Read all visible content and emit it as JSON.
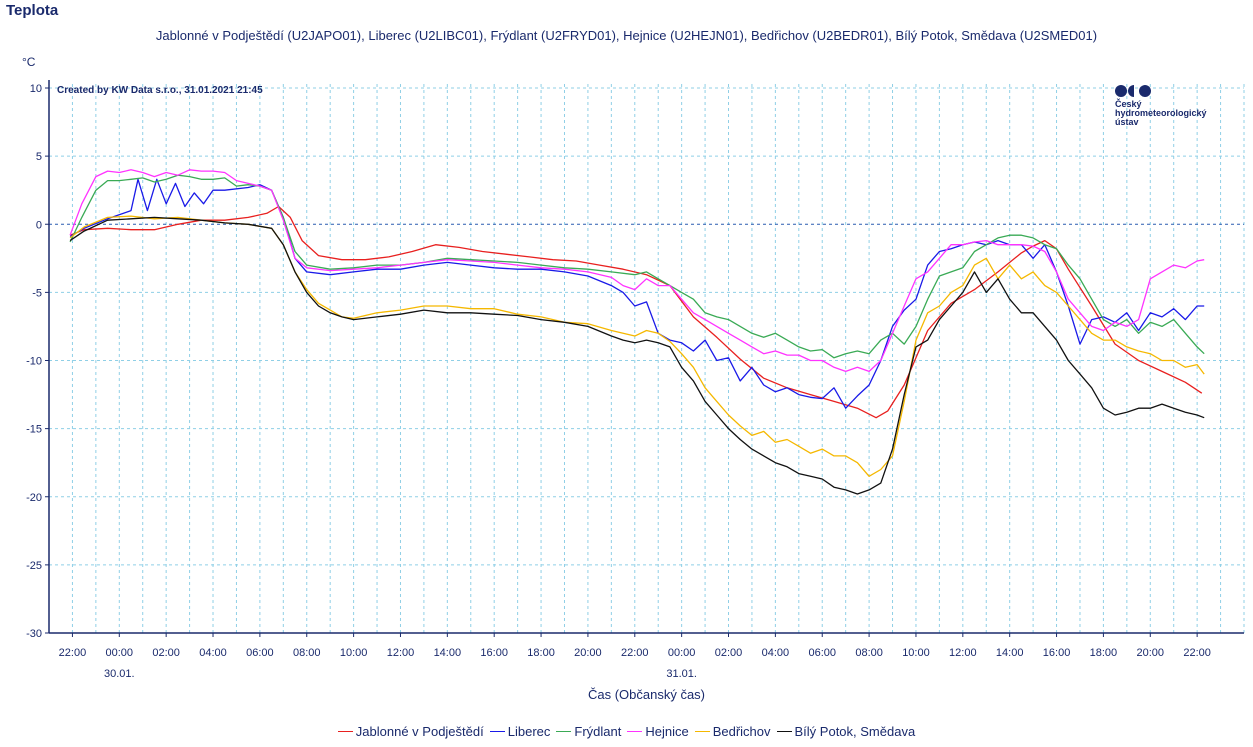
{
  "title": "Teplota",
  "subtitle": "Jablonné v Podještědí (U2JAPO01), Liberec (U2LIBC01), Frýdlant (U2FRYD01), Hejnice (U2HEJN01), Bedřichov (U2BEDR01), Bílý Potok, Smědava (U2SMED01)",
  "credit": "Created by KW Data s.r.o., 31.01.2021 21:45",
  "logo": {
    "line1": "Český",
    "line2": "hydrometeorologický",
    "line3": "ústav"
  },
  "colors": {
    "axis": "#1a2a6c",
    "grid": "#8fcfe6",
    "zero": "#2a5bb0"
  },
  "chart_data": {
    "type": "line",
    "ylabel": "°C",
    "xlabel": "Čas (Občanský čas)",
    "ylim": [
      -30,
      10
    ],
    "yticks": [
      10,
      5,
      0,
      -5,
      -10,
      -15,
      -20,
      -25,
      -30
    ],
    "xlim": [
      -3,
      48
    ],
    "xticks": [
      {
        "h": -2,
        "label": "22:00"
      },
      {
        "h": 0,
        "label": "00:00"
      },
      {
        "h": 2,
        "label": "02:00"
      },
      {
        "h": 4,
        "label": "04:00"
      },
      {
        "h": 6,
        "label": "06:00"
      },
      {
        "h": 8,
        "label": "08:00"
      },
      {
        "h": 10,
        "label": "10:00"
      },
      {
        "h": 12,
        "label": "12:00"
      },
      {
        "h": 14,
        "label": "14:00"
      },
      {
        "h": 16,
        "label": "16:00"
      },
      {
        "h": 18,
        "label": "18:00"
      },
      {
        "h": 20,
        "label": "20:00"
      },
      {
        "h": 22,
        "label": "22:00"
      },
      {
        "h": 24,
        "label": "00:00"
      },
      {
        "h": 26,
        "label": "02:00"
      },
      {
        "h": 28,
        "label": "04:00"
      },
      {
        "h": 30,
        "label": "06:00"
      },
      {
        "h": 32,
        "label": "08:00"
      },
      {
        "h": 34,
        "label": "10:00"
      },
      {
        "h": 36,
        "label": "12:00"
      },
      {
        "h": 38,
        "label": "14:00"
      },
      {
        "h": 40,
        "label": "16:00"
      },
      {
        "h": 42,
        "label": "18:00"
      },
      {
        "h": 44,
        "label": "20:00"
      },
      {
        "h": 46,
        "label": "22:00"
      }
    ],
    "date_labels": [
      {
        "h": 0,
        "label": "30.01."
      },
      {
        "h": 24,
        "label": "31.01."
      }
    ],
    "grid": true,
    "legend_position": "bottom",
    "series": [
      {
        "name": "Jablonné v Podještědí",
        "color": "#e8201f",
        "x": [
          -2.1,
          -1.5,
          -0.5,
          0.5,
          1.5,
          2.5,
          3.5,
          4.5,
          5.5,
          6.3,
          6.8,
          7.3,
          7.8,
          8.5,
          9.5,
          10.5,
          11.5,
          12.5,
          13.5,
          14.5,
          15.5,
          16.5,
          17.5,
          18.5,
          19.5,
          20.5,
          21.5,
          22.5,
          23.5,
          24.5,
          25.5,
          26.5,
          27.5,
          28.5,
          29.5,
          30.5,
          31.5,
          32.3,
          32.8,
          33.5,
          34.5,
          35.5,
          36.5,
          37.5,
          38.5,
          39.0,
          39.5,
          40.0,
          40.5,
          41.5,
          42.5,
          43.5,
          44.5,
          45.5,
          46.2
        ],
        "y": [
          -0.8,
          -0.4,
          -0.3,
          -0.4,
          -0.4,
          0.0,
          0.3,
          0.3,
          0.5,
          0.8,
          1.3,
          0.5,
          -1.2,
          -2.3,
          -2.6,
          -2.6,
          -2.4,
          -2.0,
          -1.5,
          -1.7,
          -2.0,
          -2.2,
          -2.4,
          -2.6,
          -2.7,
          -3.0,
          -3.3,
          -3.7,
          -4.5,
          -6.8,
          -8.3,
          -9.9,
          -11.3,
          -12.0,
          -12.5,
          -13.0,
          -13.5,
          -14.2,
          -13.7,
          -11.8,
          -7.8,
          -5.8,
          -4.8,
          -3.5,
          -2.1,
          -1.6,
          -1.2,
          -1.8,
          -3.3,
          -6.0,
          -8.8,
          -10.0,
          -10.8,
          -11.6,
          -12.4
        ]
      },
      {
        "name": "Liberec",
        "color": "#1a1ae8",
        "x": [
          -2.1,
          -1.5,
          -0.5,
          0.5,
          0.8,
          1.2,
          1.6,
          2.0,
          2.4,
          2.8,
          3.2,
          3.6,
          4.0,
          4.5,
          5.5,
          6.0,
          6.5,
          7.0,
          7.5,
          8.0,
          9.0,
          10.0,
          11.0,
          12.0,
          13.0,
          14.0,
          15.0,
          16.0,
          17.0,
          18.0,
          19.0,
          20.0,
          21.0,
          21.5,
          22.0,
          22.5,
          23.0,
          23.5,
          24.0,
          24.5,
          25.0,
          25.5,
          26.0,
          26.5,
          27.0,
          27.5,
          28.0,
          28.5,
          29.0,
          29.5,
          30.0,
          30.5,
          31.0,
          31.5,
          32.0,
          32.5,
          33.0,
          33.5,
          34.0,
          34.5,
          35.0,
          35.5,
          36.0,
          36.5,
          37.0,
          37.5,
          38.0,
          38.5,
          39.0,
          39.5,
          40.0,
          40.5,
          41.0,
          41.5,
          42.0,
          42.5,
          43.0,
          43.5,
          44.0,
          44.5,
          45.0,
          45.5,
          46.0,
          46.3
        ],
        "y": [
          -0.9,
          -0.3,
          0.4,
          1.0,
          3.3,
          1.0,
          3.3,
          1.5,
          3.0,
          1.3,
          2.3,
          1.5,
          2.5,
          2.5,
          2.7,
          2.9,
          2.5,
          0.5,
          -2.5,
          -3.5,
          -3.7,
          -3.5,
          -3.3,
          -3.3,
          -3.0,
          -2.8,
          -3.0,
          -3.2,
          -3.3,
          -3.3,
          -3.5,
          -3.8,
          -4.5,
          -5.0,
          -6.0,
          -5.7,
          -8.0,
          -8.5,
          -8.7,
          -9.3,
          -8.5,
          -10.0,
          -9.8,
          -11.5,
          -10.5,
          -11.8,
          -12.3,
          -12.0,
          -12.5,
          -12.7,
          -12.8,
          -12.0,
          -13.5,
          -12.6,
          -11.8,
          -10.0,
          -7.5,
          -6.3,
          -5.5,
          -3.0,
          -2.0,
          -1.8,
          -1.5,
          -1.3,
          -1.5,
          -1.2,
          -1.5,
          -1.5,
          -2.5,
          -1.5,
          -3.5,
          -6.0,
          -8.8,
          -7.0,
          -6.8,
          -7.2,
          -6.5,
          -7.8,
          -6.5,
          -6.8,
          -6.2,
          -7.0,
          -6.0,
          -6.0
        ]
      },
      {
        "name": "Frýdlant",
        "color": "#3aaa55",
        "x": [
          -2.1,
          -1.6,
          -1.0,
          -0.5,
          0.0,
          0.5,
          1.0,
          1.5,
          2.0,
          2.5,
          3.0,
          3.5,
          4.0,
          4.5,
          5.0,
          5.5,
          6.0,
          6.5,
          7.0,
          7.5,
          8.0,
          9.0,
          10.0,
          11.0,
          12.0,
          13.0,
          14.0,
          15.0,
          16.0,
          17.0,
          18.0,
          19.0,
          20.0,
          21.0,
          22.0,
          22.5,
          23.0,
          23.5,
          24.0,
          24.5,
          25.0,
          25.5,
          26.0,
          26.5,
          27.0,
          27.5,
          28.0,
          28.5,
          29.0,
          29.5,
          30.0,
          30.5,
          31.0,
          31.5,
          32.0,
          32.5,
          33.0,
          33.5,
          34.0,
          34.5,
          35.0,
          35.5,
          36.0,
          36.5,
          37.0,
          37.5,
          38.0,
          38.5,
          39.0,
          39.5,
          40.0,
          40.5,
          41.0,
          41.5,
          42.0,
          42.5,
          43.0,
          43.5,
          44.0,
          44.5,
          45.0,
          45.5,
          46.0,
          46.3
        ],
        "y": [
          -1.3,
          0.5,
          2.5,
          3.2,
          3.2,
          3.3,
          3.4,
          3.1,
          3.3,
          3.6,
          3.5,
          3.3,
          3.3,
          3.4,
          2.8,
          2.9,
          2.8,
          2.5,
          0.5,
          -2.0,
          -3.0,
          -3.3,
          -3.2,
          -3.0,
          -3.0,
          -2.8,
          -2.5,
          -2.6,
          -2.7,
          -2.8,
          -3.0,
          -3.2,
          -3.3,
          -3.5,
          -3.7,
          -3.5,
          -4.0,
          -4.5,
          -5.0,
          -5.5,
          -6.5,
          -6.8,
          -7.0,
          -7.5,
          -8.0,
          -8.3,
          -8.0,
          -8.5,
          -9.0,
          -9.3,
          -9.2,
          -9.8,
          -9.5,
          -9.3,
          -9.5,
          -8.5,
          -8.0,
          -8.8,
          -7.5,
          -5.5,
          -3.8,
          -3.5,
          -3.2,
          -2.0,
          -1.5,
          -1.0,
          -0.8,
          -0.8,
          -1.0,
          -1.5,
          -1.8,
          -3.0,
          -4.0,
          -5.5,
          -7.0,
          -7.5,
          -7.0,
          -8.0,
          -7.2,
          -7.5,
          -7.0,
          -8.0,
          -9.0,
          -9.5
        ]
      },
      {
        "name": "Hejnice",
        "color": "#ff33ff",
        "x": [
          -2.1,
          -1.6,
          -1.0,
          -0.5,
          0.0,
          0.5,
          1.0,
          1.5,
          2.0,
          2.5,
          3.0,
          3.5,
          4.0,
          4.5,
          5.0,
          5.5,
          6.0,
          6.5,
          7.0,
          7.5,
          8.0,
          9.0,
          10.0,
          11.0,
          12.0,
          13.0,
          14.0,
          15.0,
          16.0,
          17.0,
          18.0,
          19.0,
          20.0,
          21.0,
          21.5,
          22.0,
          22.5,
          23.0,
          23.5,
          24.0,
          24.5,
          25.0,
          25.5,
          26.0,
          26.5,
          27.0,
          27.5,
          28.0,
          28.5,
          29.0,
          29.5,
          30.0,
          30.5,
          31.0,
          31.5,
          32.0,
          32.5,
          33.0,
          33.5,
          34.0,
          34.5,
          35.0,
          35.5,
          36.0,
          36.5,
          37.0,
          37.5,
          38.0,
          38.5,
          39.0,
          39.5,
          40.0,
          40.5,
          41.0,
          41.5,
          42.0,
          42.5,
          43.0,
          43.5,
          44.0,
          44.5,
          45.0,
          45.5,
          46.0,
          46.3
        ],
        "y": [
          -0.8,
          1.5,
          3.5,
          3.9,
          3.8,
          4.0,
          3.8,
          3.5,
          3.8,
          3.6,
          4.0,
          3.9,
          3.9,
          3.8,
          3.2,
          3.0,
          2.8,
          2.5,
          0.3,
          -2.5,
          -3.2,
          -3.4,
          -3.3,
          -3.2,
          -3.0,
          -2.8,
          -2.6,
          -2.7,
          -2.8,
          -3.0,
          -3.2,
          -3.3,
          -3.5,
          -3.9,
          -4.5,
          -4.8,
          -4.0,
          -4.5,
          -4.5,
          -5.5,
          -6.5,
          -7.0,
          -7.5,
          -8.0,
          -8.5,
          -9.0,
          -9.5,
          -9.3,
          -9.6,
          -9.6,
          -10.0,
          -10.0,
          -10.5,
          -10.8,
          -10.5,
          -10.8,
          -10.0,
          -8.0,
          -6.0,
          -4.0,
          -3.5,
          -2.5,
          -1.5,
          -1.5,
          -1.3,
          -1.2,
          -1.5,
          -1.5,
          -1.5,
          -1.6,
          -2.0,
          -3.5,
          -5.5,
          -6.5,
          -7.5,
          -7.8,
          -7.2,
          -7.5,
          -7.0,
          -4.0,
          -3.5,
          -3.0,
          -3.2,
          -2.7,
          -2.6
        ]
      },
      {
        "name": "Bedřichov",
        "color": "#f5b800",
        "x": [
          -2.1,
          -1.5,
          -0.5,
          0.5,
          1.5,
          2.5,
          3.5,
          4.5,
          5.5,
          6.5,
          7.0,
          7.5,
          8.0,
          8.5,
          9.0,
          9.5,
          10.0,
          11.0,
          12.0,
          13.0,
          14.0,
          15.0,
          16.0,
          17.0,
          18.0,
          19.0,
          20.0,
          21.0,
          21.5,
          22.0,
          22.5,
          23.0,
          23.5,
          24.0,
          24.5,
          25.0,
          25.5,
          26.0,
          26.5,
          27.0,
          27.5,
          28.0,
          28.5,
          29.0,
          29.5,
          30.0,
          30.5,
          31.0,
          31.5,
          32.0,
          32.5,
          33.0,
          33.5,
          34.0,
          34.5,
          35.0,
          35.5,
          36.0,
          36.5,
          37.0,
          37.5,
          38.0,
          38.5,
          39.0,
          39.5,
          40.0,
          40.5,
          41.0,
          41.5,
          42.0,
          42.5,
          43.0,
          43.5,
          44.0,
          44.5,
          45.0,
          45.5,
          46.0,
          46.3
        ],
        "y": [
          -1.0,
          -0.2,
          0.5,
          0.6,
          0.4,
          0.5,
          0.3,
          0.1,
          0.0,
          -0.3,
          -1.5,
          -3.5,
          -4.8,
          -5.8,
          -6.3,
          -6.8,
          -6.9,
          -6.5,
          -6.3,
          -6.0,
          -6.0,
          -6.2,
          -6.2,
          -6.6,
          -6.8,
          -7.2,
          -7.3,
          -7.8,
          -8.0,
          -8.2,
          -7.8,
          -8.0,
          -8.6,
          -9.5,
          -10.5,
          -12.0,
          -13.0,
          -14.0,
          -14.8,
          -15.5,
          -15.2,
          -16.0,
          -15.8,
          -16.3,
          -16.8,
          -16.5,
          -17.0,
          -17.0,
          -17.5,
          -18.5,
          -18.0,
          -17.0,
          -13.0,
          -8.5,
          -6.5,
          -6.0,
          -5.0,
          -4.5,
          -3.0,
          -2.5,
          -4.0,
          -3.0,
          -4.0,
          -3.5,
          -4.5,
          -5.0,
          -6.0,
          -7.0,
          -8.0,
          -8.5,
          -8.5,
          -9.0,
          -9.3,
          -9.5,
          -10.0,
          -10.0,
          -10.5,
          -10.3,
          -11.0
        ]
      },
      {
        "name": "Bílý Potok, Smědava",
        "color": "#111111",
        "x": [
          -2.1,
          -1.5,
          -0.5,
          0.5,
          1.5,
          2.5,
          3.5,
          4.5,
          5.5,
          6.5,
          7.0,
          7.5,
          8.0,
          8.5,
          9.0,
          9.5,
          10.0,
          11.0,
          12.0,
          13.0,
          14.0,
          15.0,
          16.0,
          17.0,
          18.0,
          19.0,
          20.0,
          21.0,
          21.5,
          22.0,
          22.5,
          23.0,
          23.5,
          24.0,
          24.5,
          25.0,
          25.5,
          26.0,
          26.5,
          27.0,
          27.5,
          28.0,
          28.5,
          29.0,
          29.5,
          30.0,
          30.5,
          31.0,
          31.5,
          32.0,
          32.5,
          33.0,
          33.5,
          34.0,
          34.5,
          35.0,
          35.5,
          36.0,
          36.5,
          37.0,
          37.5,
          38.0,
          38.5,
          39.0,
          39.5,
          40.0,
          40.5,
          41.0,
          41.5,
          42.0,
          42.5,
          43.0,
          43.5,
          44.0,
          44.5,
          45.0,
          45.5,
          46.0,
          46.3
        ],
        "y": [
          -1.2,
          -0.5,
          0.3,
          0.4,
          0.5,
          0.4,
          0.3,
          0.1,
          0.0,
          -0.3,
          -1.5,
          -3.5,
          -5.0,
          -6.0,
          -6.5,
          -6.8,
          -7.0,
          -6.8,
          -6.6,
          -6.3,
          -6.5,
          -6.5,
          -6.6,
          -6.7,
          -7.0,
          -7.2,
          -7.5,
          -8.2,
          -8.5,
          -8.7,
          -8.5,
          -8.7,
          -9.0,
          -10.5,
          -11.5,
          -13.0,
          -14.0,
          -15.0,
          -15.8,
          -16.5,
          -17.0,
          -17.5,
          -17.8,
          -18.3,
          -18.5,
          -18.7,
          -19.3,
          -19.5,
          -19.8,
          -19.5,
          -19.0,
          -16.5,
          -12.5,
          -9.0,
          -8.5,
          -7.0,
          -6.0,
          -5.0,
          -3.5,
          -5.0,
          -4.0,
          -5.5,
          -6.5,
          -6.5,
          -7.5,
          -8.5,
          -10.0,
          -11.0,
          -12.0,
          -13.5,
          -14.0,
          -13.8,
          -13.5,
          -13.5,
          -13.2,
          -13.5,
          -13.8,
          -14.0,
          -14.2
        ]
      }
    ]
  }
}
